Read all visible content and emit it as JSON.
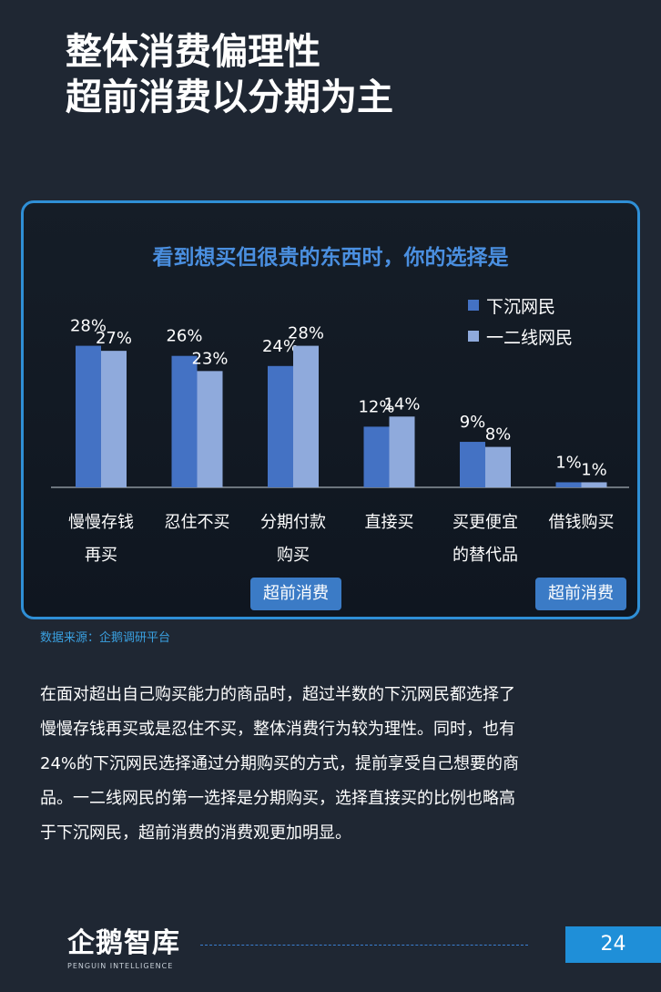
{
  "header": {
    "title_line1": "整体消费偏理性",
    "title_line2": "超前消费以分期为主"
  },
  "chart_data": {
    "type": "bar",
    "title": "看到想买但很贵的东西时，你的选择是",
    "categories": [
      [
        "慢慢存钱",
        "再买"
      ],
      [
        "忍住不买"
      ],
      [
        "分期付款",
        "购买"
      ],
      [
        "直接买"
      ],
      [
        "买更便宜",
        "的替代品"
      ],
      [
        "借钱购买"
      ]
    ],
    "series": [
      {
        "name": "下沉网民",
        "color": "#4472c4",
        "values": [
          28,
          26,
          24,
          12,
          9,
          1
        ]
      },
      {
        "name": "一二线网民",
        "color": "#8faadc",
        "values": [
          27,
          23,
          28,
          14,
          8,
          1
        ]
      }
    ],
    "value_suffix": "%",
    "ylim": [
      0,
      30
    ],
    "legend_position": "top-right",
    "grid": false
  },
  "tags": [
    "超前消费",
    "超前消费"
  ],
  "source": "数据来源：企鹅调研平台",
  "body_lines": [
    "在面对超出自己购买能力的商品时，超过半数的下沉网民都选择了",
    "慢慢存钱再买或是忍住不买，整体消费行为较为理性。同时，也有",
    "24%的下沉网民选择通过分期购买的方式，提前享受自己想要的商",
    "品。一二线网民的第一选择是分期购买，选择直接买的比例也略高",
    "于下沉网民，超前消费的消费观更加明显。"
  ],
  "footer": {
    "logo_text": "企鹅智库",
    "logo_sub": "PENGUIN INTELLIGENCE",
    "page_number": "24"
  }
}
